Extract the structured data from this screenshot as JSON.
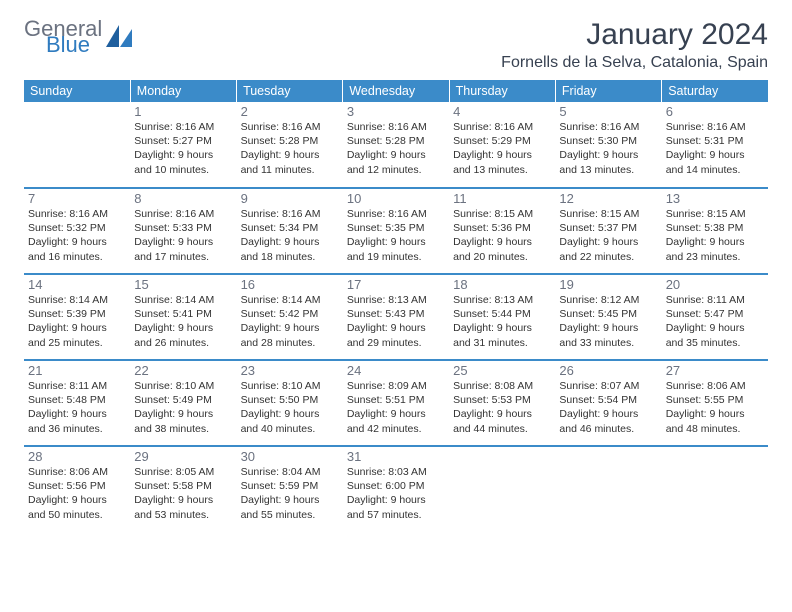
{
  "logo": {
    "text1": "General",
    "text2": "Blue",
    "icon_color": "#1f5f9e"
  },
  "title": "January 2024",
  "location": "Fornells de la Selva, Catalonia, Spain",
  "colors": {
    "header_bg": "#3b8bc9",
    "header_text": "#ffffff",
    "daynum": "#6b7280",
    "body_text": "#333333",
    "rule": "#3b8bc9"
  },
  "typography": {
    "title_fontsize": 30,
    "location_fontsize": 16,
    "header_fontsize": 12.5,
    "daynum_fontsize": 13,
    "cell_fontsize": 10.5
  },
  "days_of_week": [
    "Sunday",
    "Monday",
    "Tuesday",
    "Wednesday",
    "Thursday",
    "Friday",
    "Saturday"
  ],
  "weeks": [
    [
      {
        "n": "",
        "sunrise": "",
        "sunset": "",
        "daylight": ""
      },
      {
        "n": "1",
        "sunrise": "Sunrise: 8:16 AM",
        "sunset": "Sunset: 5:27 PM",
        "daylight": "Daylight: 9 hours and 10 minutes."
      },
      {
        "n": "2",
        "sunrise": "Sunrise: 8:16 AM",
        "sunset": "Sunset: 5:28 PM",
        "daylight": "Daylight: 9 hours and 11 minutes."
      },
      {
        "n": "3",
        "sunrise": "Sunrise: 8:16 AM",
        "sunset": "Sunset: 5:28 PM",
        "daylight": "Daylight: 9 hours and 12 minutes."
      },
      {
        "n": "4",
        "sunrise": "Sunrise: 8:16 AM",
        "sunset": "Sunset: 5:29 PM",
        "daylight": "Daylight: 9 hours and 13 minutes."
      },
      {
        "n": "5",
        "sunrise": "Sunrise: 8:16 AM",
        "sunset": "Sunset: 5:30 PM",
        "daylight": "Daylight: 9 hours and 13 minutes."
      },
      {
        "n": "6",
        "sunrise": "Sunrise: 8:16 AM",
        "sunset": "Sunset: 5:31 PM",
        "daylight": "Daylight: 9 hours and 14 minutes."
      }
    ],
    [
      {
        "n": "7",
        "sunrise": "Sunrise: 8:16 AM",
        "sunset": "Sunset: 5:32 PM",
        "daylight": "Daylight: 9 hours and 16 minutes."
      },
      {
        "n": "8",
        "sunrise": "Sunrise: 8:16 AM",
        "sunset": "Sunset: 5:33 PM",
        "daylight": "Daylight: 9 hours and 17 minutes."
      },
      {
        "n": "9",
        "sunrise": "Sunrise: 8:16 AM",
        "sunset": "Sunset: 5:34 PM",
        "daylight": "Daylight: 9 hours and 18 minutes."
      },
      {
        "n": "10",
        "sunrise": "Sunrise: 8:16 AM",
        "sunset": "Sunset: 5:35 PM",
        "daylight": "Daylight: 9 hours and 19 minutes."
      },
      {
        "n": "11",
        "sunrise": "Sunrise: 8:15 AM",
        "sunset": "Sunset: 5:36 PM",
        "daylight": "Daylight: 9 hours and 20 minutes."
      },
      {
        "n": "12",
        "sunrise": "Sunrise: 8:15 AM",
        "sunset": "Sunset: 5:37 PM",
        "daylight": "Daylight: 9 hours and 22 minutes."
      },
      {
        "n": "13",
        "sunrise": "Sunrise: 8:15 AM",
        "sunset": "Sunset: 5:38 PM",
        "daylight": "Daylight: 9 hours and 23 minutes."
      }
    ],
    [
      {
        "n": "14",
        "sunrise": "Sunrise: 8:14 AM",
        "sunset": "Sunset: 5:39 PM",
        "daylight": "Daylight: 9 hours and 25 minutes."
      },
      {
        "n": "15",
        "sunrise": "Sunrise: 8:14 AM",
        "sunset": "Sunset: 5:41 PM",
        "daylight": "Daylight: 9 hours and 26 minutes."
      },
      {
        "n": "16",
        "sunrise": "Sunrise: 8:14 AM",
        "sunset": "Sunset: 5:42 PM",
        "daylight": "Daylight: 9 hours and 28 minutes."
      },
      {
        "n": "17",
        "sunrise": "Sunrise: 8:13 AM",
        "sunset": "Sunset: 5:43 PM",
        "daylight": "Daylight: 9 hours and 29 minutes."
      },
      {
        "n": "18",
        "sunrise": "Sunrise: 8:13 AM",
        "sunset": "Sunset: 5:44 PM",
        "daylight": "Daylight: 9 hours and 31 minutes."
      },
      {
        "n": "19",
        "sunrise": "Sunrise: 8:12 AM",
        "sunset": "Sunset: 5:45 PM",
        "daylight": "Daylight: 9 hours and 33 minutes."
      },
      {
        "n": "20",
        "sunrise": "Sunrise: 8:11 AM",
        "sunset": "Sunset: 5:47 PM",
        "daylight": "Daylight: 9 hours and 35 minutes."
      }
    ],
    [
      {
        "n": "21",
        "sunrise": "Sunrise: 8:11 AM",
        "sunset": "Sunset: 5:48 PM",
        "daylight": "Daylight: 9 hours and 36 minutes."
      },
      {
        "n": "22",
        "sunrise": "Sunrise: 8:10 AM",
        "sunset": "Sunset: 5:49 PM",
        "daylight": "Daylight: 9 hours and 38 minutes."
      },
      {
        "n": "23",
        "sunrise": "Sunrise: 8:10 AM",
        "sunset": "Sunset: 5:50 PM",
        "daylight": "Daylight: 9 hours and 40 minutes."
      },
      {
        "n": "24",
        "sunrise": "Sunrise: 8:09 AM",
        "sunset": "Sunset: 5:51 PM",
        "daylight": "Daylight: 9 hours and 42 minutes."
      },
      {
        "n": "25",
        "sunrise": "Sunrise: 8:08 AM",
        "sunset": "Sunset: 5:53 PM",
        "daylight": "Daylight: 9 hours and 44 minutes."
      },
      {
        "n": "26",
        "sunrise": "Sunrise: 8:07 AM",
        "sunset": "Sunset: 5:54 PM",
        "daylight": "Daylight: 9 hours and 46 minutes."
      },
      {
        "n": "27",
        "sunrise": "Sunrise: 8:06 AM",
        "sunset": "Sunset: 5:55 PM",
        "daylight": "Daylight: 9 hours and 48 minutes."
      }
    ],
    [
      {
        "n": "28",
        "sunrise": "Sunrise: 8:06 AM",
        "sunset": "Sunset: 5:56 PM",
        "daylight": "Daylight: 9 hours and 50 minutes."
      },
      {
        "n": "29",
        "sunrise": "Sunrise: 8:05 AM",
        "sunset": "Sunset: 5:58 PM",
        "daylight": "Daylight: 9 hours and 53 minutes."
      },
      {
        "n": "30",
        "sunrise": "Sunrise: 8:04 AM",
        "sunset": "Sunset: 5:59 PM",
        "daylight": "Daylight: 9 hours and 55 minutes."
      },
      {
        "n": "31",
        "sunrise": "Sunrise: 8:03 AM",
        "sunset": "Sunset: 6:00 PM",
        "daylight": "Daylight: 9 hours and 57 minutes."
      },
      {
        "n": "",
        "sunrise": "",
        "sunset": "",
        "daylight": ""
      },
      {
        "n": "",
        "sunrise": "",
        "sunset": "",
        "daylight": ""
      },
      {
        "n": "",
        "sunrise": "",
        "sunset": "",
        "daylight": ""
      }
    ]
  ]
}
